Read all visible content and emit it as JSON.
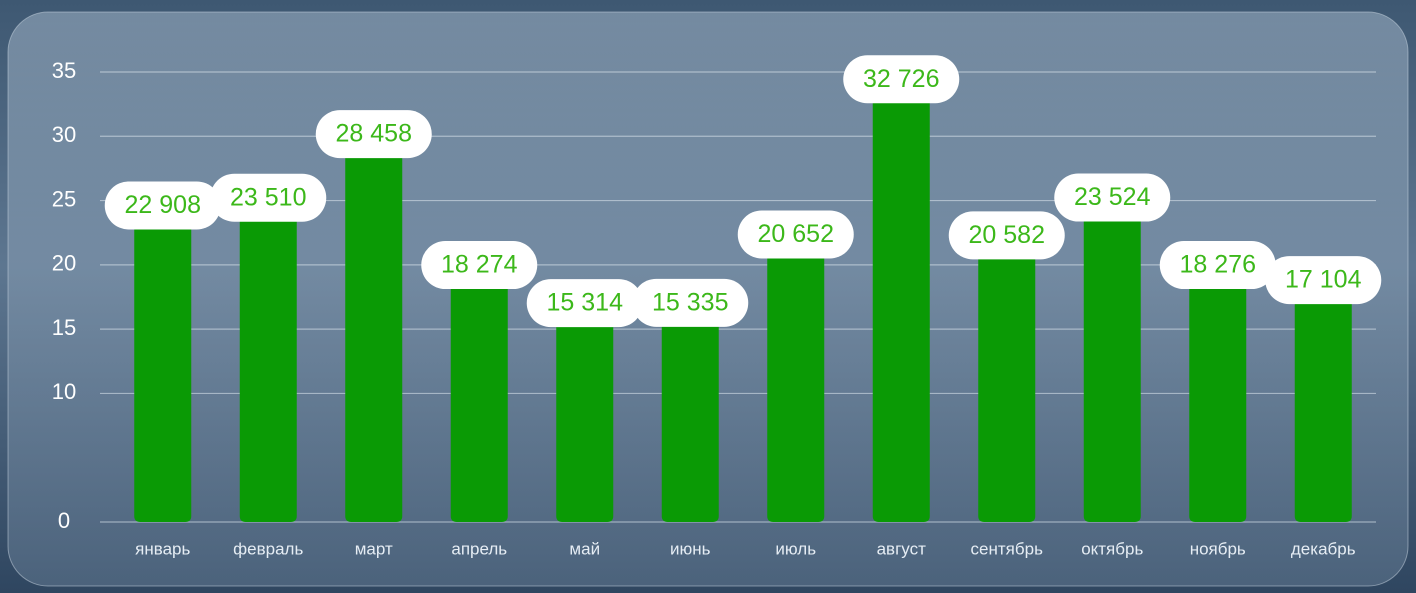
{
  "chart_data": {
    "type": "bar",
    "categories": [
      "январь",
      "февраль",
      "март",
      "апрель",
      "май",
      "июнь",
      "июль",
      "август",
      "сентябрь",
      "октябрь",
      "ноябрь",
      "декабрь"
    ],
    "values": [
      22.908,
      23.51,
      28.458,
      18.274,
      15.314,
      15.335,
      20.652,
      32.726,
      20.582,
      23.524,
      18.276,
      17.104
    ],
    "value_labels": [
      "22 908",
      "23 510",
      "28 458",
      "18 274",
      "15 314",
      "15 335",
      "20 652",
      "32 726",
      "20 582",
      "23 524",
      "18 276",
      "17 104"
    ],
    "color": "#0a9a05",
    "label_color": "#3cb81a",
    "ylim": [
      0,
      35
    ],
    "yticks": [
      0,
      10,
      15,
      20,
      25,
      30,
      35
    ],
    "grid": true
  }
}
